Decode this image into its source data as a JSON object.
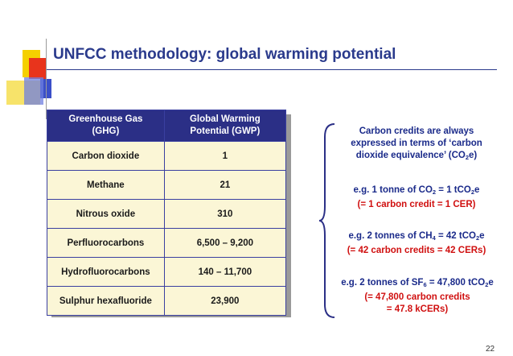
{
  "slide": {
    "title": "UNFCC methodology: global warming potential",
    "page_number": "22"
  },
  "table": {
    "headers": [
      {
        "line1": "Greenhouse Gas",
        "line2": "(GHG)"
      },
      {
        "line1": "Global Warming",
        "line2": "Potential (GWP)"
      }
    ],
    "rows": [
      {
        "gas": "Carbon dioxide",
        "gwp": "1"
      },
      {
        "gas": "Methane",
        "gwp": "21"
      },
      {
        "gas": "Nitrous oxide",
        "gwp": "310"
      },
      {
        "gas": "Perfluorocarbons",
        "gwp": "6,500 – 9,200"
      },
      {
        "gas": "Hydrofluorocarbons",
        "gwp": "140 – 11,700"
      },
      {
        "gas": "Sulphur hexafluoride",
        "gwp": "23,900"
      }
    ]
  },
  "notes": {
    "intro": {
      "line1": "Carbon credits are always",
      "line2": "expressed in terms of ‘carbon",
      "line3_pre": "dioxide equivalence’ (CO",
      "line3_sub": "2",
      "line3_post": "e)"
    },
    "ex1": {
      "pre": "e.g. 1 tonne of CO",
      "sub1": "2",
      "mid": " = 1 tCO",
      "sub2": "2",
      "post": "e",
      "result": "(= 1 carbon credit = 1 CER)"
    },
    "ex2": {
      "pre": "e.g. 2 tonnes of CH",
      "sub1": "4",
      "mid": " = 42 tCO",
      "sub2": "2",
      "post": "e",
      "result": "(= 42 carbon credits = 42 CERs)"
    },
    "ex3": {
      "pre": "e.g. 2 tonnes of SF",
      "sub1": "6",
      "mid": " = 47,800 tCO",
      "sub2": "2",
      "post": "e",
      "result1": "(= 47,800 carbon credits",
      "result2": "= 47.8 kCERs)"
    }
  },
  "colors": {
    "title": "#2a3a8c",
    "header_bg": "#2b2f86",
    "cell_bg": "#fbf6d6",
    "highlight_red": "#d01010",
    "deco_yellow": "#f5d000",
    "deco_red": "#e8341c",
    "deco_blue": "#3b4fc8"
  }
}
